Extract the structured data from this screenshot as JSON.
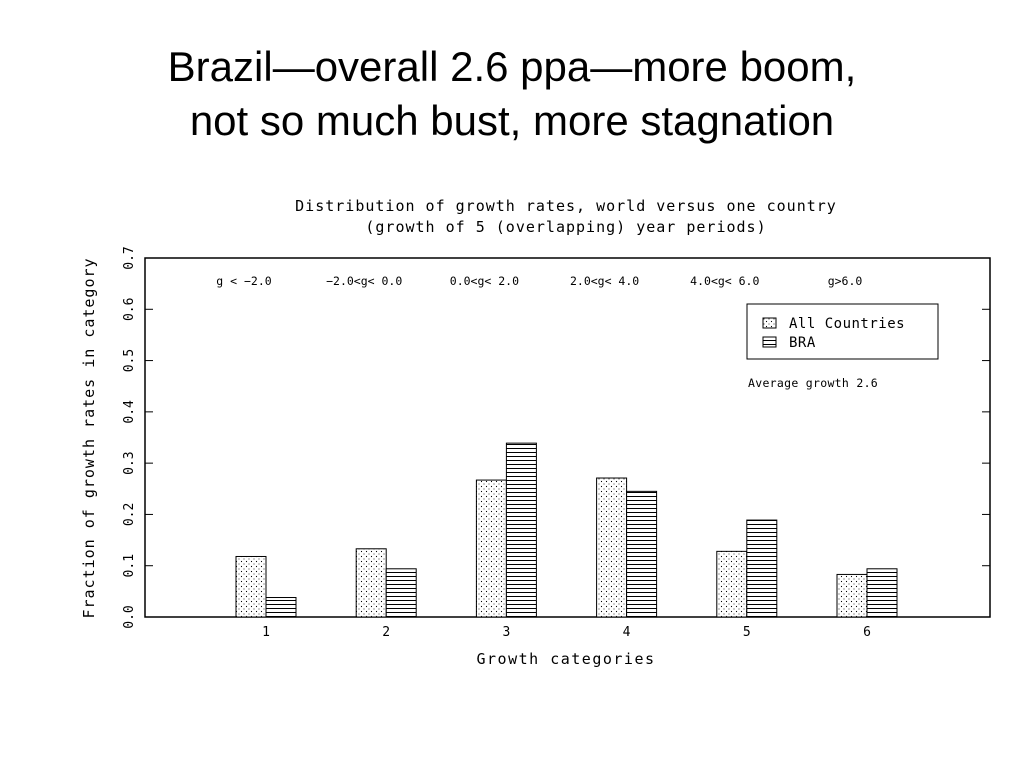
{
  "slide": {
    "title_line1": "Brazil—overall 2.6 ppa—more boom,",
    "title_line2": "not so much bust, more stagnation"
  },
  "chart_data": {
    "type": "bar",
    "title": "Distribution of growth rates, world versus one country",
    "subtitle": "(growth of 5 (overlapping) year periods)",
    "xlabel": "Growth categories",
    "ylabel": "Fraction of growth rates in category",
    "categories": [
      "1",
      "2",
      "3",
      "4",
      "5",
      "6"
    ],
    "category_ranges": [
      "g < −2.0",
      "−2.0<g< 0.0",
      "0.0<g< 2.0",
      "2.0<g< 4.0",
      "4.0<g< 6.0",
      "g>6.0"
    ],
    "series": [
      {
        "name": "All Countries",
        "pattern": "dots",
        "values": [
          0.118,
          0.133,
          0.267,
          0.271,
          0.128,
          0.083
        ]
      },
      {
        "name": "BRA",
        "pattern": "horizontal-lines",
        "values": [
          0.038,
          0.094,
          0.339,
          0.245,
          0.189,
          0.094
        ]
      }
    ],
    "ylim": [
      0,
      0.7
    ],
    "yticks": [
      "0.0",
      "0.1",
      "0.2",
      "0.3",
      "0.4",
      "0.5",
      "0.6",
      "0.7"
    ],
    "annotation": "Average growth 2.6",
    "legend_position": "top-right",
    "grid": false
  }
}
